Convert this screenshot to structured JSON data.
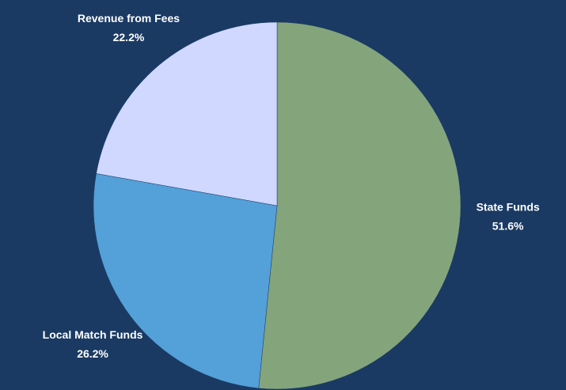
{
  "chart_data": {
    "type": "pie",
    "categories": [
      "State Funds",
      "Local Match Funds",
      "Revenue from Fees"
    ],
    "values": [
      51.6,
      26.2,
      22.2
    ],
    "value_labels": [
      "51.6%",
      "26.2%",
      "22.2%"
    ],
    "colors": [
      "#84a47c",
      "#54a0d8",
      "#d0d8ff"
    ]
  }
}
